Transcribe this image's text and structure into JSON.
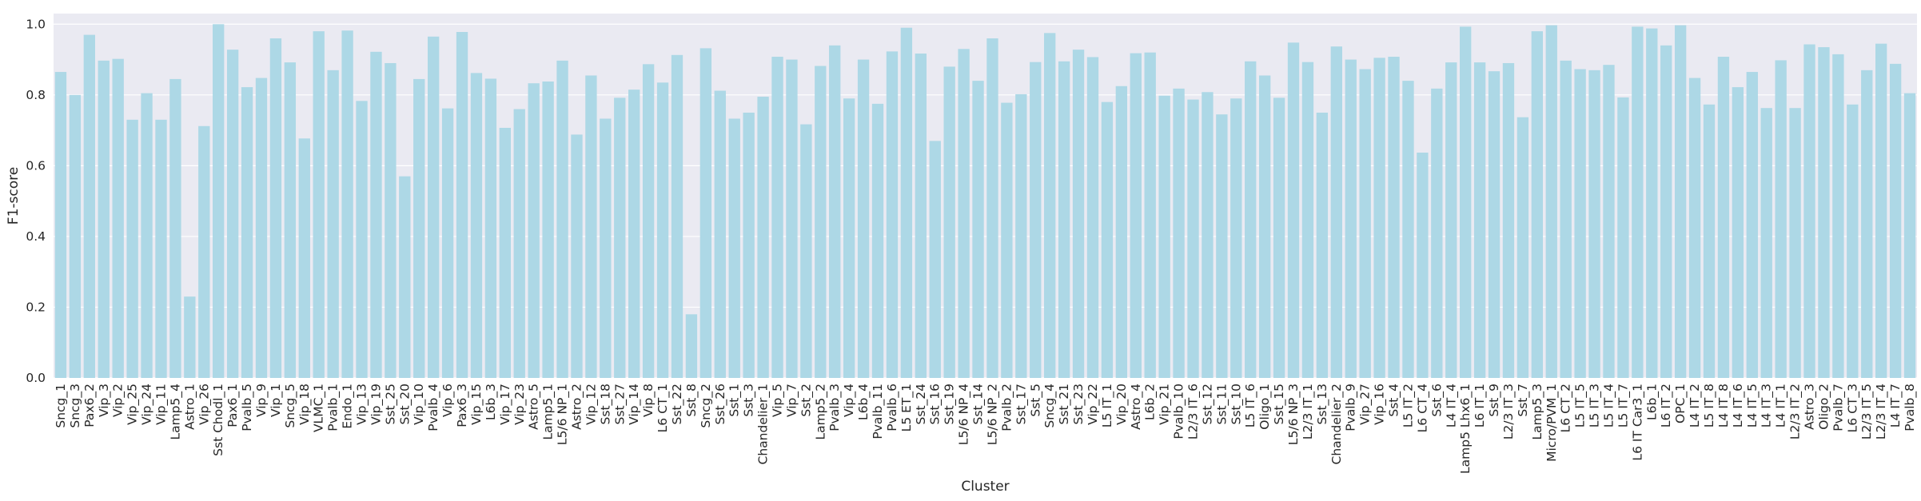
{
  "chart_data": {
    "type": "bar",
    "title": "",
    "xlabel": "Cluster",
    "ylabel": "F1-score",
    "ylim": [
      0,
      1.03
    ],
    "yticks": [
      0.0,
      0.2,
      0.4,
      0.6,
      0.8,
      1.0
    ],
    "ytick_labels": [
      "0.0",
      "0.2",
      "0.4",
      "0.6",
      "0.8",
      "1.0"
    ],
    "grid": true,
    "bar_color": "#add8e6",
    "background_color": "#eaeaf2",
    "categories": [
      "Sncg_1",
      "Sncg_3",
      "Pax6_2",
      "Vip_3",
      "Vip_2",
      "Vip_25",
      "Vip_24",
      "Vip_11",
      "Lamp5_4",
      "Astro_1",
      "Vip_26",
      "Sst Chodl_1",
      "Pax6_1",
      "Pvalb_5",
      "Vip_9",
      "Vip_1",
      "Sncg_5",
      "Vip_18",
      "VLMC_1",
      "Pvalb_1",
      "Endo_1",
      "Vip_13",
      "Vip_19",
      "Sst_25",
      "Sst_20",
      "Vip_10",
      "Pvalb_4",
      "Vip_6",
      "Pax6_3",
      "Vip_15",
      "L6b_3",
      "Vip_17",
      "Vip_23",
      "Astro_5",
      "Lamp5_1",
      "L5/6 NP_1",
      "Astro_2",
      "Vip_12",
      "Sst_18",
      "Sst_27",
      "Vip_14",
      "Vip_8",
      "L6 CT_1",
      "Sst_22",
      "Sst_8",
      "Sncg_2",
      "Sst_26",
      "Sst_1",
      "Sst_3",
      "Chandelier_1",
      "Vip_5",
      "Vip_7",
      "Sst_2",
      "Lamp5_2",
      "Pvalb_3",
      "Vip_4",
      "L6b_4",
      "Pvalb_11",
      "Pvalb_6",
      "L5 ET_1",
      "Sst_24",
      "Sst_16",
      "Sst_19",
      "L5/6 NP_4",
      "Sst_14",
      "L5/6 NP_2",
      "Pvalb_2",
      "Sst_17",
      "Sst_5",
      "Sncg_4",
      "Sst_21",
      "Sst_23",
      "Vip_22",
      "L5 IT_1",
      "Vip_20",
      "Astro_4",
      "L6b_2",
      "Vip_21",
      "Pvalb_10",
      "L2/3 IT_6",
      "Sst_12",
      "Sst_11",
      "Sst_10",
      "L5 IT_6",
      "Oligo_1",
      "Sst_15",
      "L5/6 NP_3",
      "L2/3 IT_1",
      "Sst_13",
      "Chandelier_2",
      "Pvalb_9",
      "Vip_27",
      "Vip_16",
      "Sst_4",
      "L5 IT_2",
      "L6 CT_4",
      "Sst_6",
      "L4 IT_4",
      "Lamp5 Lhx6_1",
      "L6 IT_1",
      "Sst_9",
      "L2/3 IT_3",
      "Sst_7",
      "Lamp5_3",
      "Micro/PVM_1",
      "L6 CT_2",
      "L5 IT_5",
      "L5 IT_3",
      "L5 IT_4",
      "L5 IT_7",
      "L6 IT Car3_1",
      "L6b_1",
      "L6 IT_2",
      "OPC_1",
      "L4 IT_2",
      "L5 IT_8",
      "L4 IT_8",
      "L4 IT_6",
      "L4 IT_5",
      "L4 IT_3",
      "L4 IT_1",
      "L2/3 IT_2",
      "Astro_3",
      "Oligo_2",
      "Pvalb_7",
      "L6 CT_3",
      "L2/3 IT_5",
      "L2/3 IT_4",
      "L4 IT_7",
      "Pvalb_8"
    ],
    "values": [
      0.865,
      0.8,
      0.97,
      0.897,
      0.902,
      0.73,
      0.805,
      0.73,
      0.845,
      0.23,
      0.712,
      1.0,
      0.928,
      0.822,
      0.848,
      0.96,
      0.892,
      0.677,
      0.98,
      0.87,
      0.982,
      0.783,
      0.922,
      0.89,
      0.57,
      0.845,
      0.965,
      0.762,
      0.978,
      0.862,
      0.846,
      0.707,
      0.76,
      0.833,
      0.838,
      0.897,
      0.688,
      0.855,
      0.733,
      0.792,
      0.815,
      0.887,
      0.835,
      0.913,
      0.18,
      0.932,
      0.812,
      0.733,
      0.75,
      0.795,
      0.908,
      0.9,
      0.717,
      0.882,
      0.94,
      0.79,
      0.9,
      0.775,
      0.923,
      0.99,
      0.917,
      0.67,
      0.88,
      0.93,
      0.84,
      0.96,
      0.778,
      0.802,
      0.893,
      0.975,
      0.895,
      0.928,
      0.907,
      0.78,
      0.825,
      0.918,
      0.92,
      0.798,
      0.818,
      0.787,
      0.808,
      0.745,
      0.79,
      0.895,
      0.855,
      0.792,
      0.948,
      0.893,
      0.75,
      0.937,
      0.9,
      0.873,
      0.905,
      0.908,
      0.84,
      0.637,
      0.818,
      0.892,
      0.993,
      0.892,
      0.867,
      0.89,
      0.737,
      0.98,
      0.997,
      0.897,
      0.873,
      0.87,
      0.885,
      0.793,
      0.993,
      0.988,
      0.94,
      0.997,
      0.848,
      0.773,
      0.908,
      0.822,
      0.865,
      0.763,
      0.898,
      0.763,
      0.943,
      0.935,
      0.915,
      0.773,
      0.87,
      0.945,
      0.888,
      0.805
    ]
  }
}
